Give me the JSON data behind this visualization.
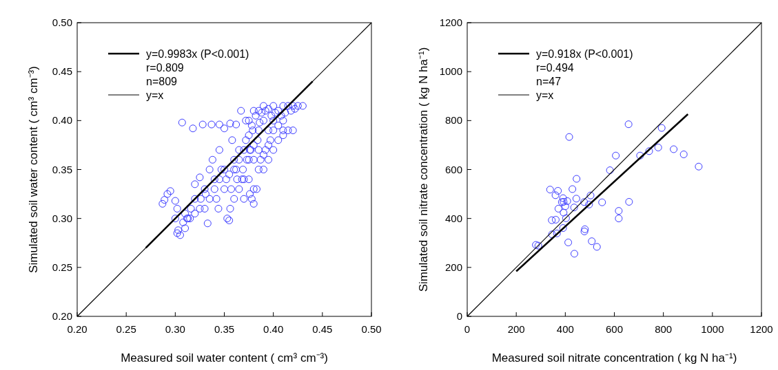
{
  "chart_data": [
    {
      "type": "scatter",
      "xlabel": "Measured soil water content  ( cm³ cm⁻³)",
      "ylabel": "Simulated soil water content  ( cm³ cm⁻³)",
      "xlim": [
        0.2,
        0.5
      ],
      "ylim": [
        0.2,
        0.5
      ],
      "xticks": [
        {
          "value": 0.2,
          "label": "0.20"
        },
        {
          "value": 0.25,
          "label": "0.25"
        },
        {
          "value": 0.3,
          "label": "0.30"
        },
        {
          "value": 0.35,
          "label": "0.35"
        },
        {
          "value": 0.4,
          "label": "0.40"
        },
        {
          "value": 0.45,
          "label": "0.45"
        },
        {
          "value": 0.5,
          "label": "0.50"
        }
      ],
      "yticks": [
        {
          "value": 0.2,
          "label": "0.20"
        },
        {
          "value": 0.25,
          "label": "0.25"
        },
        {
          "value": 0.3,
          "label": "0.30"
        },
        {
          "value": 0.35,
          "label": "0.35"
        },
        {
          "value": 0.4,
          "label": "0.40"
        },
        {
          "value": 0.45,
          "label": "0.45"
        },
        {
          "value": 0.5,
          "label": "0.50"
        }
      ],
      "marker": "circle",
      "legend": "top left",
      "grid": false,
      "annotations": [
        "r=0.809",
        "n=809"
      ],
      "series": [
        {
          "color": "#3b3bff",
          "x": [
            0.307,
            0.318,
            0.328,
            0.337,
            0.345,
            0.35,
            0.356,
            0.362,
            0.367,
            0.372,
            0.287,
            0.289,
            0.292,
            0.295,
            0.3,
            0.302,
            0.3,
            0.302,
            0.305,
            0.31,
            0.31,
            0.313,
            0.316,
            0.32,
            0.32,
            0.325,
            0.33,
            0.333,
            0.335,
            0.338,
            0.34,
            0.342,
            0.345,
            0.347,
            0.35,
            0.352,
            0.353,
            0.355,
            0.356,
            0.358,
            0.36,
            0.362,
            0.365,
            0.368,
            0.37,
            0.372,
            0.375,
            0.376,
            0.378,
            0.38,
            0.38,
            0.383,
            0.385,
            0.387,
            0.39,
            0.392,
            0.395,
            0.397,
            0.4,
            0.405,
            0.41,
            0.415,
            0.42,
            0.375,
            0.38,
            0.385,
            0.39,
            0.395,
            0.4,
            0.405,
            0.41,
            0.415,
            0.42,
            0.425,
            0.43,
            0.378,
            0.385,
            0.39,
            0.395,
            0.4,
            0.41,
            0.375,
            0.38,
            0.37,
            0.365,
            0.36,
            0.355,
            0.35,
            0.345,
            0.34,
            0.335,
            0.33,
            0.325,
            0.32,
            0.315,
            0.39,
            0.395,
            0.4,
            0.405,
            0.41,
            0.375,
            0.38,
            0.385,
            0.36,
            0.365,
            0.37,
            0.382,
            0.388,
            0.392,
            0.398,
            0.402,
            0.408,
            0.412,
            0.418,
            0.422,
            0.386,
            0.384,
            0.379,
            0.376,
            0.303,
            0.308,
            0.312,
            0.326,
            0.331,
            0.344,
            0.357,
            0.363,
            0.369,
            0.373,
            0.377
          ],
          "values": [
            0.398,
            0.392,
            0.396,
            0.396,
            0.396,
            0.392,
            0.397,
            0.396,
            0.41,
            0.4,
            0.315,
            0.319,
            0.325,
            0.328,
            0.318,
            0.31,
            0.3,
            0.285,
            0.283,
            0.29,
            0.305,
            0.3,
            0.31,
            0.32,
            0.335,
            0.342,
            0.33,
            0.295,
            0.35,
            0.36,
            0.34,
            0.32,
            0.37,
            0.35,
            0.33,
            0.34,
            0.3,
            0.298,
            0.31,
            0.38,
            0.36,
            0.35,
            0.37,
            0.34,
            0.32,
            0.38,
            0.36,
            0.325,
            0.32,
            0.33,
            0.315,
            0.33,
            0.35,
            0.36,
            0.365,
            0.37,
            0.375,
            0.38,
            0.39,
            0.395,
            0.39,
            0.39,
            0.39,
            0.4,
            0.41,
            0.41,
            0.415,
            0.412,
            0.415,
            0.41,
            0.415,
            0.415,
            0.415,
            0.415,
            0.415,
            0.395,
            0.39,
            0.4,
            0.39,
            0.4,
            0.4,
            0.385,
            0.375,
            0.37,
            0.36,
            0.35,
            0.345,
            0.35,
            0.34,
            0.33,
            0.32,
            0.31,
            0.31,
            0.305,
            0.3,
            0.35,
            0.36,
            0.37,
            0.38,
            0.385,
            0.34,
            0.36,
            0.37,
            0.32,
            0.33,
            0.34,
            0.405,
            0.408,
            0.41,
            0.405,
            0.408,
            0.405,
            0.408,
            0.41,
            0.412,
            0.398,
            0.38,
            0.39,
            0.37,
            0.288,
            0.296,
            0.3,
            0.32,
            0.325,
            0.31,
            0.33,
            0.34,
            0.35,
            0.36,
            0.37
          ]
        },
        {
          "type": "line",
          "name": "y=0.9983x (P<0.001)",
          "color": "#000000",
          "marker": "none",
          "x": [
            0.27,
            0.44
          ],
          "values": [
            0.27,
            0.44
          ]
        },
        {
          "type": "line",
          "name": "y=x",
          "color": "#000000",
          "marker": "none",
          "x": [
            0.2,
            0.5
          ],
          "values": [
            0.2,
            0.5
          ]
        }
      ]
    },
    {
      "type": "scatter",
      "xlabel": "Measured soil nitrate concentration  ( kg N ha⁻¹)",
      "ylabel": "Simulated soil nitrate concentration  ( kg N ha⁻¹)",
      "xlim": [
        0,
        1200
      ],
      "ylim": [
        0,
        1200
      ],
      "xticks": [
        0,
        200,
        400,
        600,
        800,
        1000,
        1200
      ],
      "yticks": [
        0,
        200,
        400,
        600,
        800,
        1000,
        1200
      ],
      "marker": "circle",
      "legend": "top left",
      "grid": false,
      "annotations": [
        "r=0.494",
        "n=47"
      ],
      "series": [
        {
          "color": "#3b3bff",
          "x": [
            658,
            416,
            793,
            779,
            842,
            883,
            944,
            742,
            705,
            606,
            582,
            446,
            338,
            370,
            429,
            360,
            503,
            445,
            391,
            408,
            386,
            477,
            550,
            660,
            497,
            400,
            436,
            372,
            618,
            393,
            403,
            618,
            345,
            361,
            391,
            480,
            478,
            346,
            366,
            280,
            290,
            412,
            508,
            529,
            437,
            393
          ],
          "values": [
            785,
            733,
            770,
            690,
            683,
            662,
            612,
            675,
            657,
            657,
            597,
            562,
            518,
            513,
            520,
            495,
            494,
            481,
            483,
            471,
            467,
            467,
            466,
            468,
            457,
            450,
            445,
            440,
            431,
            424,
            401,
            400,
            393,
            395,
            361,
            356,
            347,
            335,
            339,
            292,
            289,
            302,
            307,
            284,
            256,
            468
          ]
        },
        {
          "type": "line",
          "name": "y=0.918x (P<0.001)",
          "color": "#000000",
          "marker": "none",
          "x": [
            200,
            900
          ],
          "values": [
            184,
            826
          ]
        },
        {
          "type": "line",
          "name": "y=x",
          "color": "#000000",
          "marker": "none",
          "x": [
            0,
            1200
          ],
          "values": [
            0,
            1200
          ]
        }
      ]
    }
  ]
}
